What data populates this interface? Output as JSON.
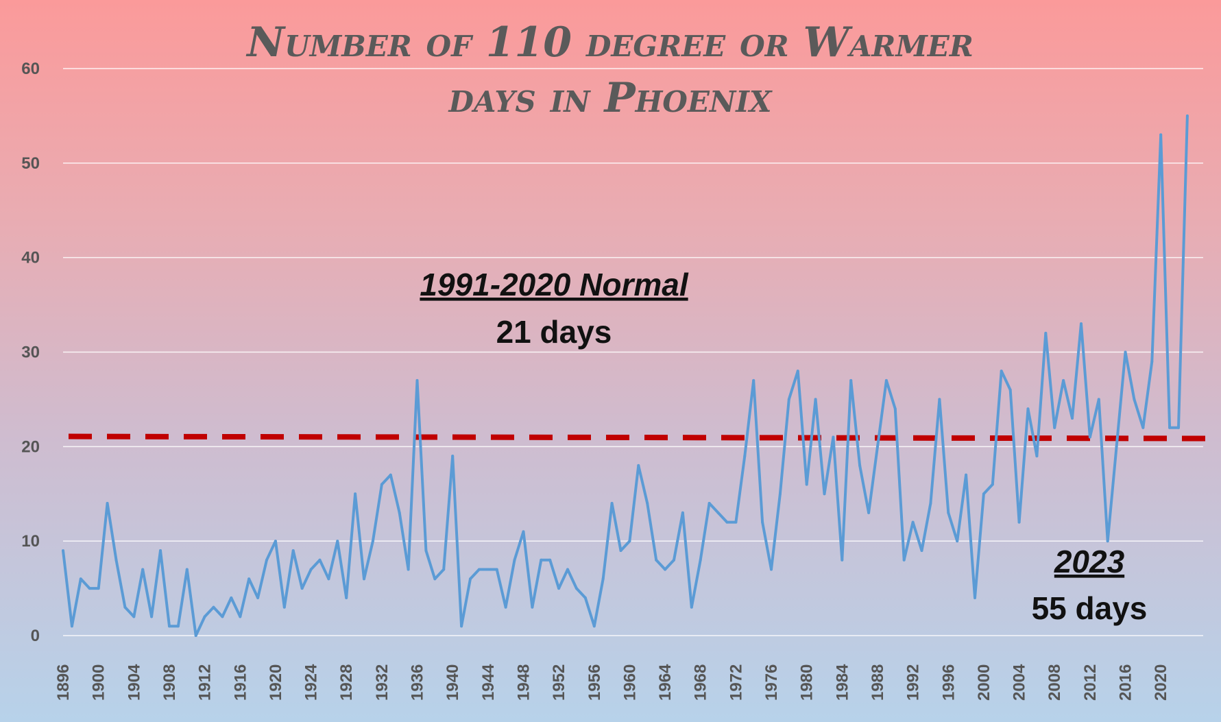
{
  "chart_data": {
    "type": "line",
    "title_line1": "Number of 110 degree or Warmer",
    "title_line2": "days in Phoenix",
    "xlabel": "",
    "ylabel": "",
    "ylim": [
      0,
      60
    ],
    "yticks": [
      0,
      10,
      20,
      30,
      40,
      50,
      60
    ],
    "xticks": [
      1896,
      1900,
      1904,
      1908,
      1912,
      1916,
      1920,
      1924,
      1928,
      1932,
      1936,
      1940,
      1944,
      1948,
      1952,
      1956,
      1960,
      1964,
      1968,
      1972,
      1976,
      1980,
      1984,
      1988,
      1992,
      1996,
      2000,
      2004,
      2008,
      2012,
      2016,
      2020
    ],
    "grid": true,
    "x": [
      1896,
      1897,
      1898,
      1899,
      1900,
      1901,
      1902,
      1903,
      1904,
      1905,
      1906,
      1907,
      1908,
      1909,
      1910,
      1911,
      1912,
      1913,
      1914,
      1915,
      1916,
      1917,
      1918,
      1919,
      1920,
      1921,
      1922,
      1923,
      1924,
      1925,
      1926,
      1927,
      1928,
      1929,
      1930,
      1931,
      1932,
      1933,
      1934,
      1935,
      1936,
      1937,
      1938,
      1939,
      1940,
      1941,
      1942,
      1943,
      1944,
      1945,
      1946,
      1947,
      1948,
      1949,
      1950,
      1951,
      1952,
      1953,
      1954,
      1955,
      1956,
      1957,
      1958,
      1959,
      1960,
      1961,
      1962,
      1963,
      1964,
      1965,
      1966,
      1967,
      1968,
      1969,
      1970,
      1971,
      1972,
      1973,
      1974,
      1975,
      1976,
      1977,
      1978,
      1979,
      1980,
      1981,
      1982,
      1983,
      1984,
      1985,
      1986,
      1987,
      1988,
      1989,
      1990,
      1991,
      1992,
      1993,
      1994,
      1995,
      1996,
      1997,
      1998,
      1999,
      2000,
      2001,
      2002,
      2003,
      2004,
      2005,
      2006,
      2007,
      2008,
      2009,
      2010,
      2011,
      2012,
      2013,
      2014,
      2015,
      2016,
      2017,
      2018,
      2019,
      2020,
      2021,
      2022,
      2023
    ],
    "series": [
      {
        "name": "",
        "color": "#5b9bd5",
        "values": [
          9,
          1,
          6,
          5,
          5,
          14,
          8,
          3,
          2,
          7,
          2,
          9,
          1,
          1,
          7,
          0,
          2,
          3,
          2,
          4,
          2,
          6,
          4,
          8,
          10,
          3,
          9,
          5,
          7,
          8,
          6,
          10,
          4,
          15,
          6,
          10,
          16,
          17,
          13,
          7,
          27,
          9,
          6,
          7,
          19,
          1,
          6,
          7,
          7,
          7,
          3,
          8,
          11,
          3,
          8,
          8,
          5,
          7,
          5,
          4,
          1,
          6,
          14,
          9,
          10,
          18,
          14,
          8,
          7,
          8,
          13,
          3,
          8,
          14,
          13,
          12,
          12,
          19,
          27,
          12,
          7,
          15,
          25,
          28,
          16,
          25,
          15,
          21,
          8,
          27,
          18,
          13,
          20,
          27,
          24,
          8,
          12,
          9,
          14,
          25,
          13,
          10,
          17,
          4,
          15,
          16,
          28,
          26,
          12,
          24,
          19,
          32,
          22,
          27,
          23,
          33,
          21,
          25,
          10,
          20,
          30,
          25,
          22,
          29,
          53,
          22,
          22,
          55
        ]
      },
      {
        "name": "",
        "type": "dashed-reference",
        "color": "#c00000",
        "value": 21
      }
    ],
    "annotations": [
      {
        "id": "normal",
        "head": "1991-2020 Normal",
        "body": "21 days"
      },
      {
        "id": "recent",
        "head": "2023",
        "body": "55 days"
      }
    ]
  }
}
